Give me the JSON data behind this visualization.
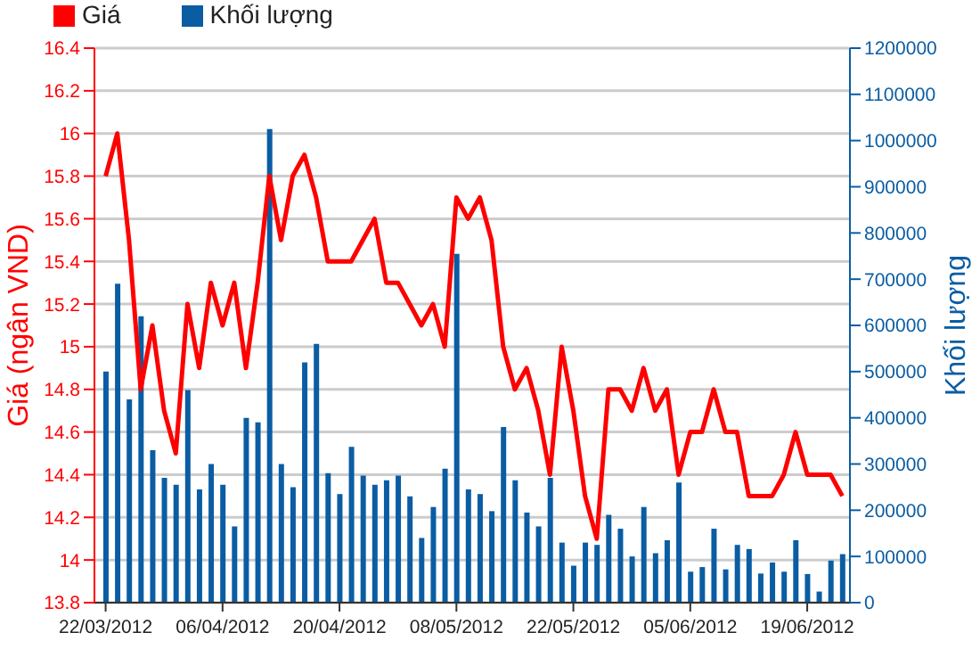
{
  "chart_data": {
    "type": "bar",
    "xlabel": null,
    "ylabel": "Giá (ngân VND)",
    "y2label": "Khối lượng",
    "categories": [
      "22/03/2012",
      null,
      null,
      null,
      null,
      null,
      null,
      null,
      null,
      null,
      "06/04/2012",
      null,
      null,
      null,
      null,
      null,
      null,
      null,
      null,
      null,
      "20/04/2012",
      null,
      null,
      null,
      null,
      null,
      null,
      null,
      null,
      null,
      "08/05/2012",
      null,
      null,
      null,
      null,
      null,
      null,
      null,
      null,
      null,
      "22/05/2012",
      null,
      null,
      null,
      null,
      null,
      null,
      null,
      null,
      null,
      "05/06/2012",
      null,
      null,
      null,
      null,
      null,
      null,
      null,
      null,
      null,
      "19/06/2012",
      null,
      null,
      null
    ],
    "series": [
      {
        "name": "Giá",
        "type": "line",
        "axis": "y",
        "color": "#ff0000",
        "values": [
          15.8,
          16.0,
          15.5,
          14.8,
          15.1,
          14.7,
          14.5,
          15.2,
          14.9,
          15.3,
          15.1,
          15.3,
          14.9,
          15.3,
          15.8,
          15.5,
          15.8,
          15.9,
          15.7,
          15.4,
          15.4,
          15.4,
          15.5,
          15.6,
          15.3,
          15.3,
          15.2,
          15.1,
          15.2,
          15.0,
          15.7,
          15.6,
          15.7,
          15.5,
          15.0,
          14.8,
          14.9,
          14.7,
          14.4,
          15.0,
          14.7,
          14.3,
          14.1,
          14.8,
          14.8,
          14.7,
          14.9,
          14.7,
          14.8,
          14.4,
          14.6,
          14.6,
          14.8,
          14.6,
          14.6,
          14.3,
          14.3,
          14.3,
          14.4,
          14.6,
          14.4,
          14.4,
          14.4,
          14.3
        ]
      },
      {
        "name": "Khối lượng",
        "axis": "y2",
        "color": "#0a5da3",
        "values": [
          500000,
          690000,
          440000,
          620000,
          330000,
          270000,
          255000,
          460000,
          245000,
          300000,
          255000,
          165000,
          400000,
          390000,
          1025000,
          300000,
          250000,
          520000,
          560000,
          280000,
          235000,
          337000,
          275000,
          255000,
          265000,
          275000,
          230000,
          140000,
          207000,
          290000,
          755000,
          245000,
          235000,
          198000,
          380000,
          265000,
          195000,
          165000,
          270000,
          130000,
          80000,
          130000,
          125000,
          190000,
          160000,
          100000,
          207000,
          107000,
          135000,
          260000,
          67000,
          77000,
          160000,
          72000,
          125000,
          116000,
          63000,
          87000,
          67000,
          135000,
          62000,
          24000,
          91000,
          105000
        ]
      }
    ],
    "ylim": [
      13.8,
      16.4
    ],
    "yticks": [
      13.8,
      14,
      14.2,
      14.4,
      14.6,
      14.8,
      15,
      15.2,
      15.4,
      15.6,
      15.8,
      16,
      16.2,
      16.4
    ],
    "y2lim": [
      0,
      1200000
    ],
    "y2ticks": [
      0,
      100000,
      200000,
      300000,
      400000,
      500000,
      600000,
      700000,
      800000,
      900000,
      1000000,
      1100000,
      1200000
    ],
    "grid": "y",
    "legend": "top left"
  }
}
